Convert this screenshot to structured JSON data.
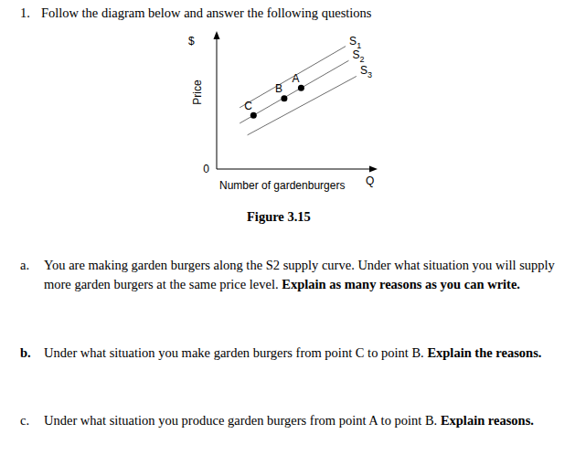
{
  "header": {
    "number": "1.",
    "text": "Follow the diagram below and answer the following questions"
  },
  "chart_data": {
    "type": "line",
    "y_label": "Price",
    "y_unit": "$",
    "x_label": "Number of gardenburgers",
    "x_end_label": "Q",
    "xlim": [
      0,
      10
    ],
    "ylim": [
      0,
      10
    ],
    "xticks": [],
    "yticks": [
      0
    ],
    "tick_labels": "y",
    "grid": false,
    "color": "#6e6e6e",
    "series": [
      {
        "name": "S1",
        "x": [
          1.5,
          8.4
        ],
        "values": [
          4.7,
          9.4
        ]
      },
      {
        "name": "S2",
        "x": [
          1.5,
          8.6
        ],
        "values": [
          3.5,
          8.3
        ]
      },
      {
        "name": "S3",
        "x": [
          2,
          9.1
        ],
        "values": [
          2.6,
          7.1
        ]
      }
    ],
    "points": [
      {
        "label": "A",
        "x": 5.5,
        "y": 6.2
      },
      {
        "label": "B",
        "x": 4.4,
        "y": 5.4
      },
      {
        "label": "C",
        "x": 2.4,
        "y": 4.1
      }
    ]
  },
  "caption": "Figure 3.15",
  "questions": [
    {
      "label": "a.",
      "text": "You are making garden burgers along the S2 supply curve. Under what situation you will supply more garden burgers at the same price level.",
      "bold": "Explain as many reasons as you can write."
    },
    {
      "label": "b.",
      "text": "Under what situation you make garden burgers from point C to point B.",
      "bold": "Explain the reasons."
    },
    {
      "label": "c.",
      "text": "Under what situation you produce garden burgers from point A to point B.",
      "bold": "Explain reasons."
    }
  ]
}
